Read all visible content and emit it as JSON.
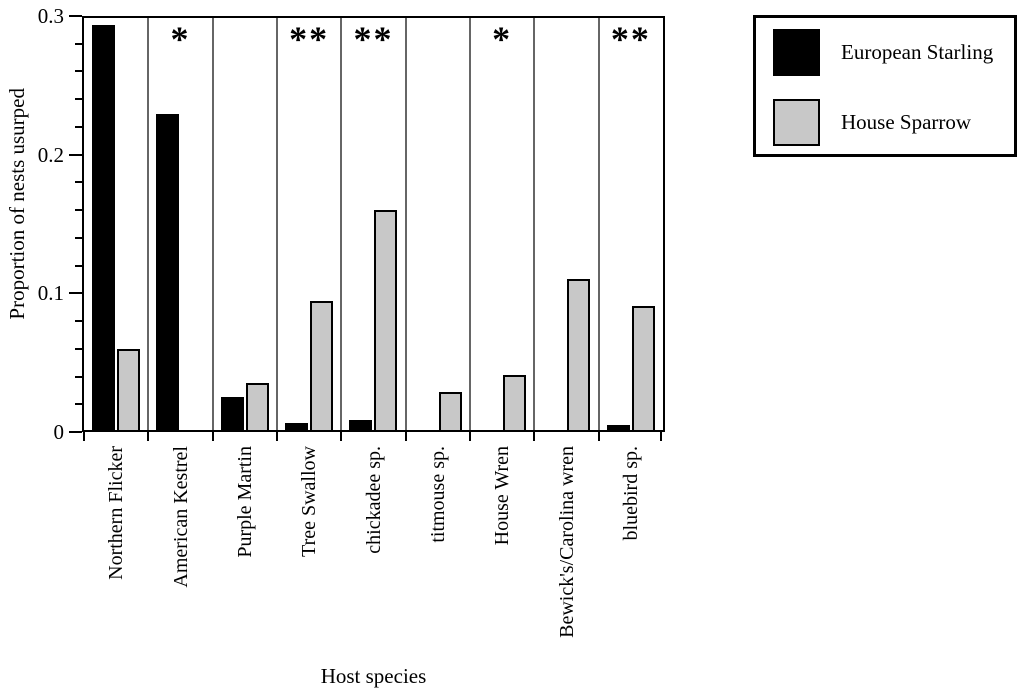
{
  "chart_data": {
    "type": "bar",
    "title": "",
    "xlabel": "Host species",
    "ylabel": "Proportion of nests usurped",
    "ylim": [
      0,
      0.3
    ],
    "yticks_major": [
      0,
      0.1,
      0.2,
      0.3
    ],
    "ytick_labels": [
      "0",
      "0.1",
      "0.2",
      "0.3"
    ],
    "ytick_minor_step": 0.02,
    "grid": "vertical-category-separators",
    "legend_position": "top-right-outside",
    "categories": [
      "Northern Flicker",
      "American Kestrel",
      "Purple Martin",
      "Tree Swallow",
      "chickadee sp.",
      "titmouse sp.",
      "House Wren",
      "Bewick's/Carolina wren",
      "bluebird sp."
    ],
    "series": [
      {
        "name": "European Starling",
        "color": "#000000",
        "values": [
          0.295,
          0.23,
          0.024,
          0.005,
          0.007,
          0,
          0,
          0,
          0.004
        ]
      },
      {
        "name": "House Sparrow",
        "color": "#c8c8c8",
        "values": [
          0.059,
          0,
          0.034,
          0.094,
          0.16,
          0.028,
          0.04,
          0.11,
          0.09
        ]
      }
    ],
    "significance": [
      "",
      "*",
      "",
      "**",
      "**",
      "",
      "*",
      "",
      "**"
    ]
  },
  "legend": {
    "items": [
      {
        "label": "European Starling",
        "color": "#000000"
      },
      {
        "label": "House Sparrow",
        "color": "#c8c8c8"
      }
    ]
  }
}
